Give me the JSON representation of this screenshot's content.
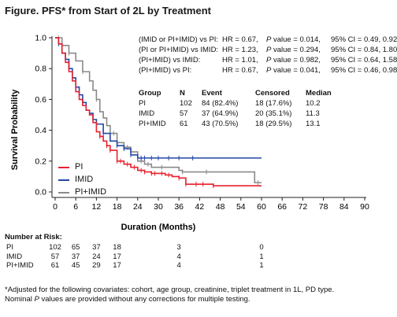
{
  "figure_title": "Figure. PFS* from Start of 2L by Treatment",
  "colors": {
    "pi": "#e8202e",
    "imid": "#2347a4",
    "pi_imid": "#8a8a8a"
  },
  "stats": [
    {
      "comparison": "(IMID or PI+IMID) vs PI:",
      "hr": "HR = 0.67,",
      "pv_label": "P",
      "pv": "value = 0.014,",
      "ci": "95% CI = 0.49, 0.92"
    },
    {
      "comparison": "(PI or PI+IMID) vs IMID:",
      "hr": "HR = 1.23,",
      "pv_label": "P",
      "pv": "value = 0.294,",
      "ci": "95% CI = 0.84, 1.80"
    },
    {
      "comparison": "(PI+IMID) vs IMID:",
      "hr": "HR = 1.01,",
      "pv_label": "P",
      "pv": "value = 0.982,",
      "ci": "95% CI = 0.64, 1.58"
    },
    {
      "comparison": "(PI+IMID) vs PI:",
      "hr": "HR = 0.67,",
      "pv_label": "P",
      "pv": "value = 0.041,",
      "ci": "95% CI = 0.46, 0.98"
    }
  ],
  "group_table": {
    "headers": [
      "Group",
      "N",
      "Event",
      "Censored",
      "Median"
    ],
    "rows": [
      [
        "PI",
        "102",
        "84 (82.4%)",
        "18 (17.6%)",
        "10.2"
      ],
      [
        "IMID",
        "57",
        "37 (64.9%)",
        "20 (35.1%)",
        "11.3"
      ],
      [
        "PI+IMID",
        "61",
        "43 (70.5%)",
        "18 (29.5%)",
        "13.1"
      ]
    ]
  },
  "risk_table": {
    "title": "Number at Risk:",
    "times": [
      0,
      6,
      12,
      18,
      36,
      60
    ],
    "rows": [
      {
        "label": "PI",
        "values": [
          "102",
          "65",
          "37",
          "18",
          "3",
          "0"
        ]
      },
      {
        "label": "IMID",
        "values": [
          "57",
          "37",
          "24",
          "17",
          "4",
          "1"
        ]
      },
      {
        "label": "PI+IMID",
        "values": [
          "61",
          "45",
          "29",
          "17",
          "4",
          "1"
        ]
      }
    ]
  },
  "footnote": {
    "line1": "*Adjusted for the following covariates: cohort, age group, creatinine, triplet treatment in 1L, PD type.",
    "line2_pre": "Nominal ",
    "line2_italic": "P",
    "line2_post": " values are provided without any corrections for multiple testing."
  },
  "chart_data": {
    "type": "line",
    "subtype": "kaplan-meier step",
    "xlabel": "Duration (Months)",
    "ylabel": "Survival Probability",
    "xlim": [
      0,
      90
    ],
    "ylim": [
      0,
      1.0
    ],
    "xticks": [
      0,
      6,
      12,
      18,
      24,
      30,
      36,
      42,
      48,
      54,
      60,
      66,
      72,
      78,
      84,
      90
    ],
    "yticks": [
      0.0,
      0.2,
      0.4,
      0.6,
      0.8,
      1.0
    ],
    "ytick_labels": [
      "0.0",
      "0.2",
      "0.4",
      "0.6",
      "0.8",
      "1.0"
    ],
    "legend_position": "bottom-left",
    "series": [
      {
        "name": "PI",
        "color": "#e8202e",
        "x": [
          0,
          1,
          2,
          3,
          4,
          5,
          6,
          7,
          8,
          9,
          10,
          11,
          12,
          13,
          14,
          15,
          16,
          18,
          20,
          22,
          24,
          26,
          28,
          30,
          32,
          34,
          36,
          38,
          40,
          46,
          60
        ],
        "y": [
          1.0,
          0.96,
          0.9,
          0.84,
          0.78,
          0.72,
          0.65,
          0.6,
          0.56,
          0.53,
          0.5,
          0.45,
          0.39,
          0.36,
          0.33,
          0.3,
          0.27,
          0.2,
          0.18,
          0.16,
          0.14,
          0.13,
          0.12,
          0.12,
          0.11,
          0.1,
          0.09,
          0.05,
          0.05,
          0.04,
          0.04
        ],
        "censor_x": [
          13,
          15,
          16,
          18,
          19,
          21,
          23,
          25,
          26,
          28,
          29,
          31,
          33,
          36,
          38,
          41,
          43,
          46
        ]
      },
      {
        "name": "IMID",
        "color": "#2347a4",
        "x": [
          0,
          1,
          2,
          3,
          4,
          5,
          6,
          7,
          8,
          9,
          10,
          11,
          12,
          14,
          16,
          18,
          20,
          22,
          24,
          60
        ],
        "y": [
          1.0,
          0.96,
          0.9,
          0.86,
          0.8,
          0.74,
          0.68,
          0.63,
          0.58,
          0.53,
          0.51,
          0.47,
          0.44,
          0.38,
          0.33,
          0.3,
          0.28,
          0.24,
          0.22,
          0.22
        ],
        "censor_x": [
          1,
          5,
          10,
          14,
          18,
          20,
          22,
          25,
          26,
          28,
          30,
          33,
          36,
          40
        ]
      },
      {
        "name": "PI+IMID",
        "color": "#8a8a8a",
        "x": [
          0,
          2,
          4,
          6,
          8,
          10,
          11,
          12,
          13,
          14,
          15,
          16,
          18,
          20,
          22,
          24,
          26,
          28,
          30,
          32,
          36,
          37,
          46,
          58,
          60
        ],
        "y": [
          1.0,
          0.95,
          0.9,
          0.85,
          0.78,
          0.72,
          0.66,
          0.6,
          0.52,
          0.48,
          0.43,
          0.38,
          0.32,
          0.29,
          0.26,
          0.2,
          0.18,
          0.16,
          0.16,
          0.16,
          0.14,
          0.13,
          0.13,
          0.06,
          0.06
        ],
        "censor_x": [
          1,
          4,
          8,
          12,
          17,
          21,
          25,
          27,
          31,
          37,
          44,
          59
        ]
      }
    ]
  }
}
